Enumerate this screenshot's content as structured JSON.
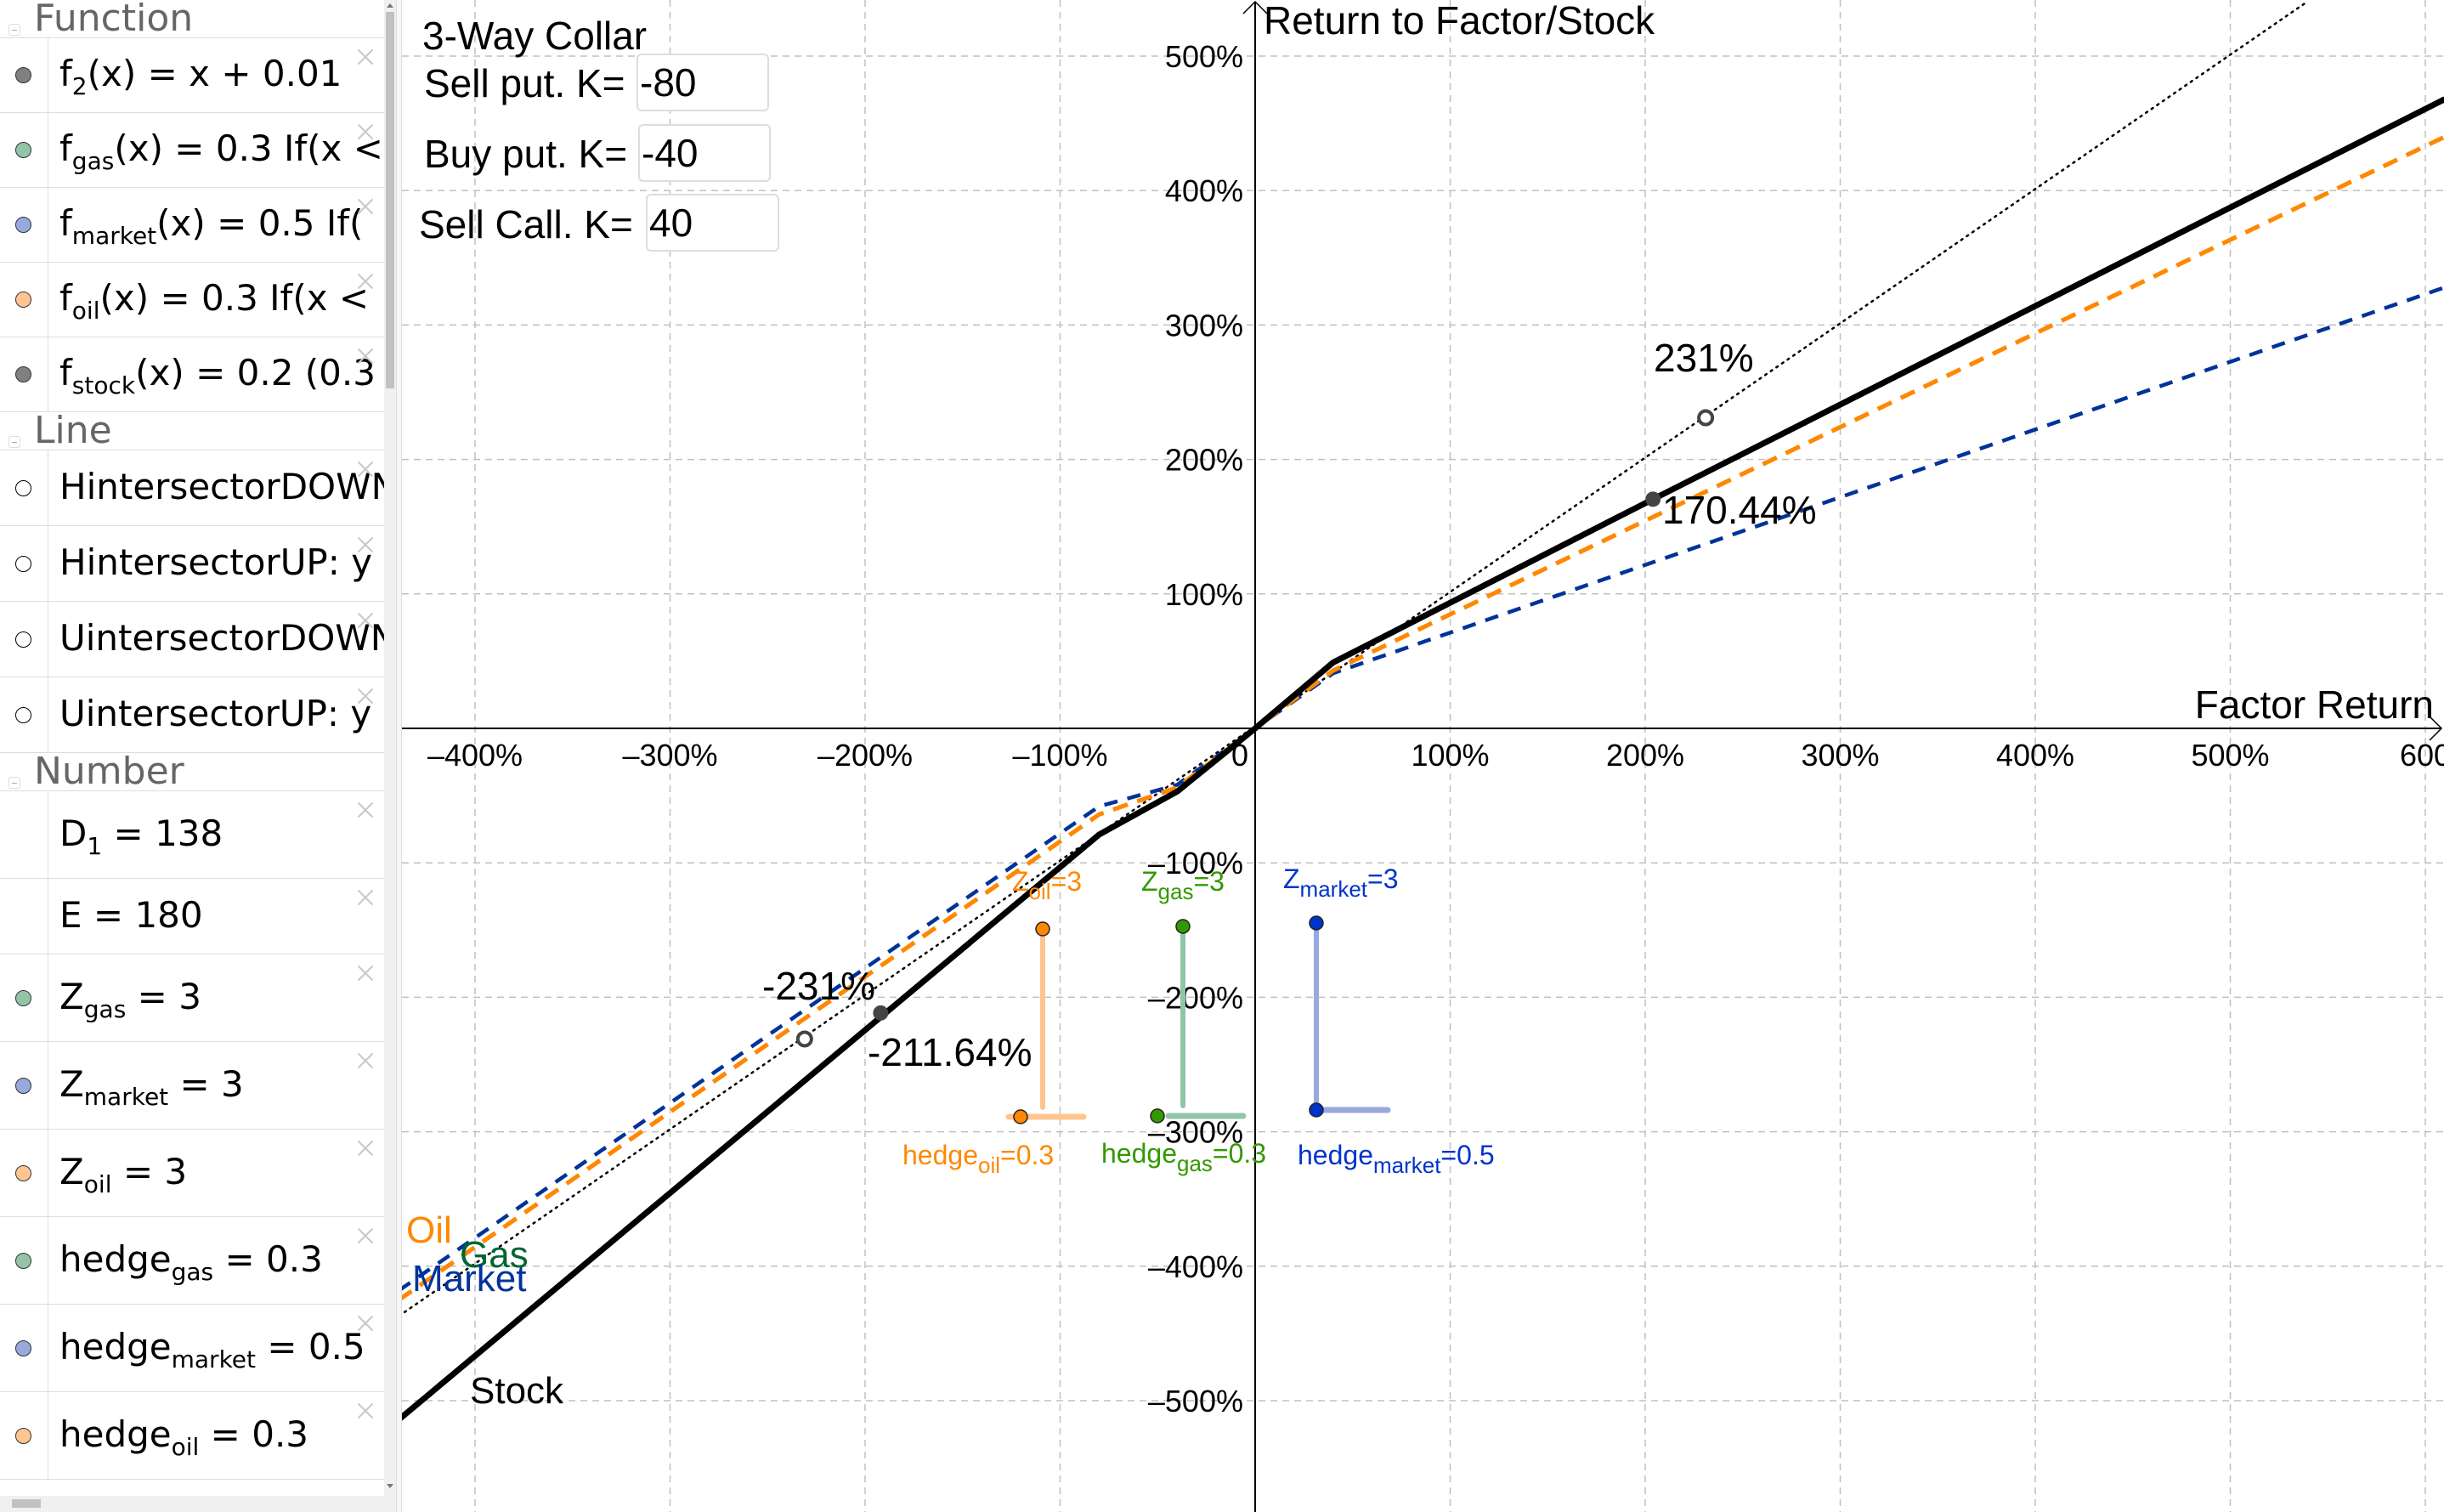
{
  "algebra": {
    "sections": [
      {
        "title": "Function",
        "rows": [
          {
            "name": "f",
            "sub": "2",
            "rest": "(x) = x + 0.01",
            "color": "#808080"
          },
          {
            "name": "f",
            "sub": "gas",
            "rest": "(x) = 0.3 If(x <",
            "color": "#93c4a8"
          },
          {
            "name": "f",
            "sub": "market",
            "rest": "(x) = 0.5 If(",
            "color": "#97a9dd"
          },
          {
            "name": "f",
            "sub": "oil",
            "rest": "(x) = 0.3 If(x <",
            "color": "#ffc490"
          },
          {
            "name": "f",
            "sub": "stock",
            "rest": "(x) = 0.2 (0.3",
            "color": "#808080"
          }
        ]
      },
      {
        "title": "Line",
        "rows": [
          {
            "name": "HintersectorDOWN",
            "sub": "",
            "rest": "",
            "color": "#ffffff"
          },
          {
            "name": "HintersectorUP: y",
            "sub": "",
            "rest": "",
            "color": "#ffffff"
          },
          {
            "name": "UintersectorDOWN",
            "sub": "",
            "rest": "",
            "color": "#ffffff"
          },
          {
            "name": "UintersectorUP: y",
            "sub": "",
            "rest": "",
            "color": "#ffffff"
          }
        ]
      },
      {
        "title": "Number",
        "rows": [
          {
            "name": "D",
            "sub": "1",
            "rest": " = 138",
            "color": ""
          },
          {
            "name": "E",
            "sub": "",
            "rest": " = 180",
            "color": ""
          },
          {
            "name": "Z",
            "sub": "gas",
            "rest": " = 3",
            "color": "#93c4a8"
          },
          {
            "name": "Z",
            "sub": "market",
            "rest": " = 3",
            "color": "#97a9dd"
          },
          {
            "name": "Z",
            "sub": "oil",
            "rest": " = 3",
            "color": "#ffc490"
          },
          {
            "name": "hedge",
            "sub": "gas",
            "rest": " = 0.3",
            "color": "#93c4a8"
          },
          {
            "name": "hedge",
            "sub": "market",
            "rest": " = 0.5",
            "color": "#97a9dd"
          },
          {
            "name": "hedge",
            "sub": "oil",
            "rest": " = 0.3",
            "color": "#ffc490"
          }
        ]
      }
    ]
  },
  "controls": {
    "title": "3-Way Collar",
    "sell_put_label": "Sell put. K=",
    "sell_put_value": "-80",
    "buy_put_label": "Buy put. K=",
    "buy_put_value": "-40",
    "sell_call_label": "Sell Call. K=",
    "sell_call_value": "40"
  },
  "colors": {
    "stock": "#000000",
    "oil": "#ff8800",
    "gas": "#006633",
    "market": "#003399",
    "grid": "#c0c0c0",
    "oil_light": "#ffc490",
    "gas_light": "#93c4a8",
    "market_light": "#97a9dd"
  },
  "chart_data": {
    "type": "line",
    "title": "3-Way Collar",
    "xlabel": "Factor Return",
    "ylabel": "Return to Factor/Stock",
    "xlim": [
      -440,
      610
    ],
    "ylim": [
      -590,
      540
    ],
    "x_ticks": [
      "–400%",
      "–300%",
      "–200%",
      "–100%",
      "0",
      "100%",
      "200%",
      "300%",
      "400%",
      "500%",
      "600"
    ],
    "y_ticks": [
      "500%",
      "400%",
      "300%",
      "200%",
      "100%",
      "–100%",
      "–200%",
      "–300%",
      "–400%",
      "–500%"
    ],
    "grid": true,
    "series": [
      {
        "name": "Stock",
        "style": "solid",
        "x": [
          -439,
          -80,
          -40,
          0,
          40,
          204,
          610
        ],
        "y": [
          -514,
          -79,
          -47,
          0,
          49,
          170.44,
          468
        ]
      },
      {
        "name": "Oil",
        "style": "dashed",
        "x": [
          -439,
          -80,
          -40,
          0,
          40,
          610
        ],
        "y": [
          -425,
          -64,
          -44,
          0,
          43,
          440
        ]
      },
      {
        "name": "Gas",
        "style": "dashed",
        "x": [
          -439,
          -80,
          -40,
          0,
          40,
          610
        ],
        "y": [
          -425,
          -64,
          -44,
          0,
          43,
          440
        ]
      },
      {
        "name": "Market",
        "style": "dashed",
        "x": [
          -439,
          -80,
          -40,
          0,
          40,
          610
        ],
        "y": [
          -418,
          -58,
          -42,
          0,
          41,
          328
        ]
      },
      {
        "name": "f2 (x + 0.01)",
        "style": "dotted",
        "x": [
          -439,
          540
        ],
        "y": [
          -437,
          541
        ]
      }
    ],
    "annotations": [
      {
        "text": "231%",
        "x": 231,
        "y": 231
      },
      {
        "text": "170.44%",
        "x": 204,
        "y": 170.44
      },
      {
        "text": "-231%",
        "x": -231,
        "y": -231
      },
      {
        "text": "-211.64%",
        "x": -192,
        "y": -211.64
      }
    ],
    "series_labels": [
      "Oil",
      "Gas",
      "Market",
      "Stock"
    ]
  },
  "indicators": [
    {
      "z_label": "Z",
      "z_sub": "oil",
      "z_val": "=3",
      "h_label": "hedge",
      "h_sub": "oil",
      "h_val": "=0.3",
      "color": "#ff8800",
      "light": "#ffc490"
    },
    {
      "z_label": "Z",
      "z_sub": "gas",
      "z_val": "=3",
      "h_label": "hedge",
      "h_sub": "gas",
      "h_val": "=0.3",
      "color": "#339900",
      "light": "#93c4a8"
    },
    {
      "z_label": "Z",
      "z_sub": "market",
      "z_val": "=3",
      "h_label": "hedge",
      "h_sub": "market",
      "h_val": "=0.5",
      "color": "#0033cc",
      "light": "#97a9dd"
    }
  ]
}
